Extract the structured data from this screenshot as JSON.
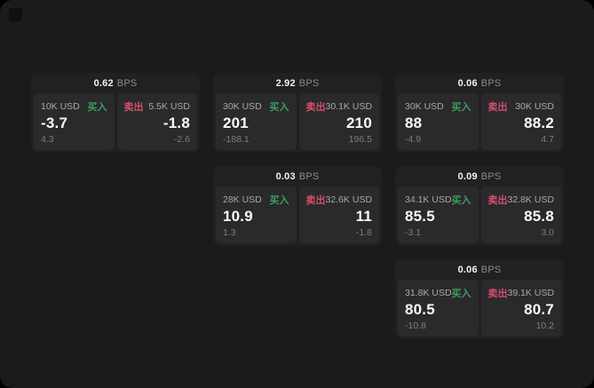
{
  "labels": {
    "buy": "买入",
    "sell": "卖出",
    "bps_unit": "BPS"
  },
  "colors": {
    "buy": "#3d9e63",
    "sell": "#d2506b",
    "backdrop": "#000000",
    "surface": "#1b1b1d",
    "card": "#212123",
    "panel": "#2a2a2c"
  },
  "cards": [
    {
      "grid": {
        "col": 1,
        "row": 1
      },
      "bps": "0.62",
      "buy": {
        "amount": "10K USD",
        "price": "-3.7",
        "change": "4.3"
      },
      "sell": {
        "amount": "5.5K USD",
        "price": "-1.8",
        "change": "-2.6"
      }
    },
    {
      "grid": {
        "col": 2,
        "row": 1
      },
      "bps": "2.92",
      "buy": {
        "amount": "30K USD",
        "price": "201",
        "change": "-188.1"
      },
      "sell": {
        "amount": "30.1K USD",
        "price": "210",
        "change": "196.5"
      }
    },
    {
      "grid": {
        "col": 3,
        "row": 1
      },
      "bps": "0.06",
      "buy": {
        "amount": "30K USD",
        "price": "88",
        "change": "-4.9"
      },
      "sell": {
        "amount": "30K USD",
        "price": "88.2",
        "change": "4.7"
      }
    },
    {
      "grid": {
        "col": 2,
        "row": 2
      },
      "bps": "0.03",
      "buy": {
        "amount": "28K USD",
        "price": "10.9",
        "change": "1.3"
      },
      "sell": {
        "amount": "32.6K USD",
        "price": "11",
        "change": "-1.8"
      }
    },
    {
      "grid": {
        "col": 3,
        "row": 2
      },
      "bps": "0.09",
      "buy": {
        "amount": "34.1K USD",
        "price": "85.5",
        "change": "-3.1"
      },
      "sell": {
        "amount": "32.8K USD",
        "price": "85.8",
        "change": "3.0"
      }
    },
    {
      "grid": {
        "col": 3,
        "row": 3
      },
      "bps": "0.06",
      "buy": {
        "amount": "31.8K USD",
        "price": "80.5",
        "change": "-10.8"
      },
      "sell": {
        "amount": "39.1K USD",
        "price": "80.7",
        "change": "10.2"
      }
    }
  ]
}
